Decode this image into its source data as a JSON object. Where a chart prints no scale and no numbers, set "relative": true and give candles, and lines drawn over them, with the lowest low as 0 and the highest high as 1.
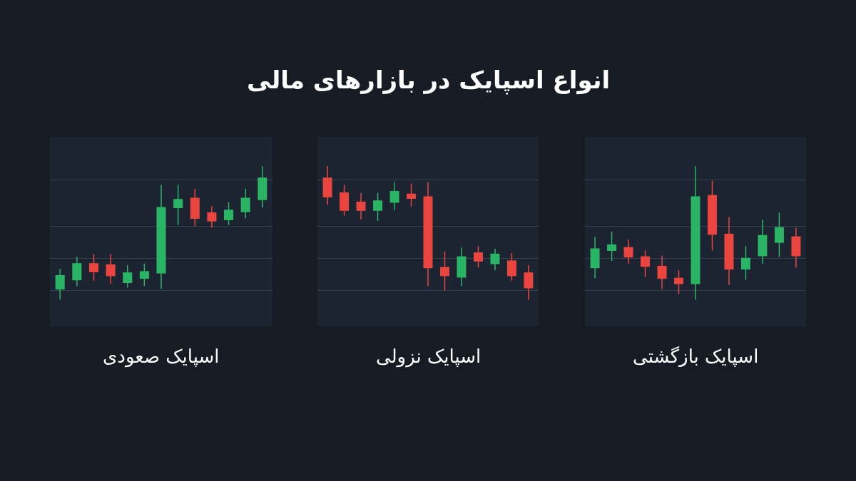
{
  "chart_data": [
    {
      "type": "candlestick",
      "xlabel": "اسپایک صعودی",
      "relative": true,
      "grid": true,
      "categories": [
        null,
        null,
        null,
        null,
        null,
        null,
        null,
        null,
        null,
        null,
        null,
        null,
        null
      ],
      "ohlc": [
        [
          0.08,
          0.23,
          0.0,
          0.18
        ],
        [
          0.15,
          0.32,
          0.1,
          0.27
        ],
        [
          0.27,
          0.34,
          0.14,
          0.21
        ],
        [
          0.26,
          0.34,
          0.12,
          0.18
        ],
        [
          0.13,
          0.26,
          0.09,
          0.2
        ],
        [
          0.16,
          0.27,
          0.1,
          0.21
        ],
        [
          0.2,
          0.86,
          0.08,
          0.69
        ],
        [
          0.69,
          0.86,
          0.56,
          0.75
        ],
        [
          0.76,
          0.83,
          0.55,
          0.61
        ],
        [
          0.65,
          0.7,
          0.54,
          0.59
        ],
        [
          0.6,
          0.73,
          0.56,
          0.67
        ],
        [
          0.66,
          0.83,
          0.61,
          0.76
        ],
        [
          0.75,
          1.0,
          0.69,
          0.91
        ]
      ],
      "colors": [
        "#2ab565",
        "#2ab565",
        "#eb4540",
        "#eb4540",
        "#2ab565",
        "#2ab565",
        "#2ab565",
        "#2ab565",
        "#eb4540",
        "#eb4540",
        "#2ab565",
        "#2ab565",
        "#2ab565"
      ]
    },
    {
      "type": "candlestick",
      "title": "انواع اسپایک در بازارهای مالی",
      "xlabel": "اسپایک نزولی",
      "relative": true,
      "grid": true,
      "categories": [
        null,
        null,
        null,
        null,
        null,
        null,
        null,
        null,
        null,
        null,
        null,
        null,
        null
      ],
      "ohlc": [
        [
          0.91,
          1.0,
          0.71,
          0.77
        ],
        [
          0.8,
          0.86,
          0.63,
          0.67
        ],
        [
          0.73,
          0.8,
          0.6,
          0.67
        ],
        [
          0.67,
          0.8,
          0.59,
          0.74
        ],
        [
          0.73,
          0.88,
          0.67,
          0.81
        ],
        [
          0.79,
          0.87,
          0.7,
          0.76
        ],
        [
          0.77,
          0.88,
          0.1,
          0.24
        ],
        [
          0.24,
          0.36,
          0.07,
          0.18
        ],
        [
          0.17,
          0.39,
          0.1,
          0.32
        ],
        [
          0.35,
          0.4,
          0.24,
          0.29
        ],
        [
          0.27,
          0.38,
          0.22,
          0.34
        ],
        [
          0.29,
          0.35,
          0.14,
          0.18
        ],
        [
          0.2,
          0.26,
          0.0,
          0.09
        ]
      ],
      "colors": [
        "#eb4540",
        "#eb4540",
        "#eb4540",
        "#2ab565",
        "#2ab565",
        "#eb4540",
        "#eb4540",
        "#eb4540",
        "#2ab565",
        "#eb4540",
        "#2ab565",
        "#eb4540",
        "#eb4540"
      ]
    },
    {
      "type": "candlestick",
      "xlabel": "اسپایک بازگشتی",
      "relative": true,
      "grid": true,
      "categories": [
        null,
        null,
        null,
        null,
        null,
        null,
        null,
        null,
        null,
        null,
        null,
        null,
        null
      ],
      "ohlc": [
        [
          0.24,
          0.47,
          0.16,
          0.38
        ],
        [
          0.37,
          0.51,
          0.29,
          0.41
        ],
        [
          0.39,
          0.45,
          0.27,
          0.32
        ],
        [
          0.32,
          0.37,
          0.17,
          0.25
        ],
        [
          0.25,
          0.33,
          0.08,
          0.16
        ],
        [
          0.16,
          0.22,
          0.04,
          0.12
        ],
        [
          0.12,
          1.0,
          0.0,
          0.77
        ],
        [
          0.78,
          0.89,
          0.37,
          0.49
        ],
        [
          0.49,
          0.62,
          0.11,
          0.23
        ],
        [
          0.23,
          0.4,
          0.15,
          0.31
        ],
        [
          0.33,
          0.6,
          0.27,
          0.48
        ],
        [
          0.43,
          0.65,
          0.32,
          0.54
        ],
        [
          0.47,
          0.54,
          0.24,
          0.33
        ]
      ],
      "colors": [
        "#2ab565",
        "#2ab565",
        "#eb4540",
        "#eb4540",
        "#eb4540",
        "#eb4540",
        "#2ab565",
        "#eb4540",
        "#eb4540",
        "#2ab565",
        "#2ab565",
        "#2ab565",
        "#eb4540"
      ]
    }
  ]
}
